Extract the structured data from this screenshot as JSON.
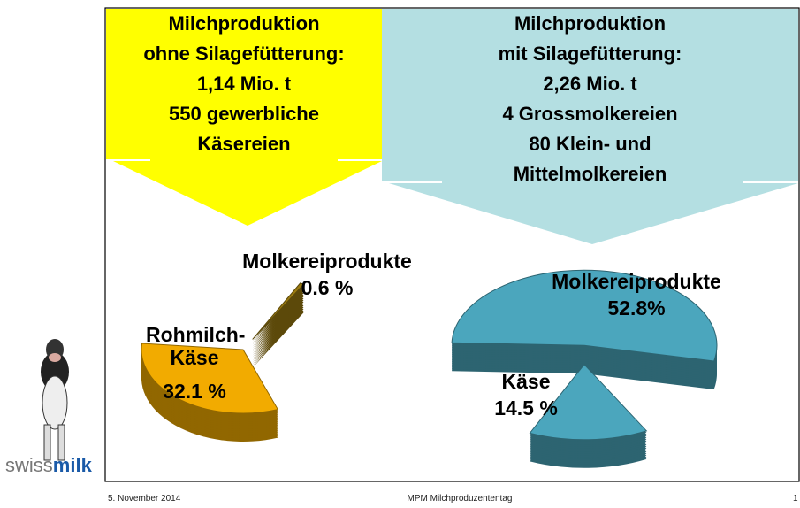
{
  "panels": [
    {
      "lines": [
        "Milchproduktion",
        "ohne Silagefütterung:",
        "1,14 Mio. t",
        "550 gewerbliche",
        "Käsereien"
      ]
    },
    {
      "lines": [
        "Milchproduktion",
        "mit Silagefütterung:",
        "2,26 Mio. t",
        "4 Grossmolkereien",
        "80 Klein- und",
        "Mittelmolkereien"
      ]
    }
  ],
  "chart_data": [
    {
      "type": "pie",
      "categories": [
        "Rohmilch-Käse",
        "Molkereiprodukte"
      ],
      "values": [
        32.1,
        0.6
      ],
      "value_labels": [
        "32.1 %",
        "0.6 %"
      ],
      "colors": [
        "#f2ab00",
        "#9a7a10"
      ]
    },
    {
      "type": "pie",
      "categories": [
        "Molkereiprodukte",
        "Käse"
      ],
      "values": [
        52.8,
        14.5
      ],
      "value_labels": [
        "52.8%",
        "14.5 %"
      ],
      "colors": [
        "#4ba6bd",
        "#4ba6bd"
      ]
    }
  ],
  "logo": {
    "prefix": "swiss",
    "suffix": "milk"
  },
  "footer": {
    "date": "5. November 2014",
    "event": "MPM Milchproduzententag",
    "page": "1"
  }
}
